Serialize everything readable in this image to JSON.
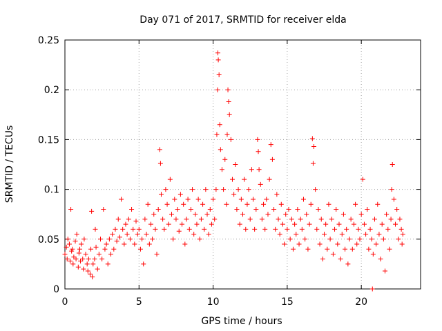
{
  "chart_data": {
    "type": "scatter",
    "title": "Day 071 of 2017, SRMTID for receiver elda",
    "xlabel": "GPS time / hours",
    "ylabel": "SRMTID / TECUs",
    "xlim": [
      0,
      24
    ],
    "ylim": [
      0,
      0.25
    ],
    "xticks": [
      0,
      5,
      10,
      15,
      20
    ],
    "xtick_labels": [
      "0",
      "5",
      "10",
      "15",
      "20"
    ],
    "yticks": [
      0,
      0.05,
      0.1,
      0.15,
      0.2,
      0.25
    ],
    "ytick_labels": [
      "0",
      "0.05",
      "0.1",
      "0.15",
      "0.2",
      "0.25"
    ],
    "grid": true,
    "marker": "+",
    "color": "#ff0000",
    "series": [
      {
        "name": "SRMTID",
        "points": [
          [
            0.0,
            0.035
          ],
          [
            0.1,
            0.042
          ],
          [
            0.15,
            0.03
          ],
          [
            0.2,
            0.05
          ],
          [
            0.3,
            0.045
          ],
          [
            0.35,
            0.028
          ],
          [
            0.4,
            0.08
          ],
          [
            0.45,
            0.038
          ],
          [
            0.5,
            0.04
          ],
          [
            0.55,
            0.025
          ],
          [
            0.6,
            0.032
          ],
          [
            0.7,
            0.048
          ],
          [
            0.75,
            0.03
          ],
          [
            0.8,
            0.055
          ],
          [
            0.9,
            0.022
          ],
          [
            0.95,
            0.036
          ],
          [
            1.0,
            0.04
          ],
          [
            1.05,
            0.028
          ],
          [
            1.1,
            0.045
          ],
          [
            1.2,
            0.03
          ],
          [
            1.25,
            0.02
          ],
          [
            1.3,
            0.05
          ],
          [
            1.4,
            0.035
          ],
          [
            1.5,
            0.025
          ],
          [
            1.55,
            0.018
          ],
          [
            1.6,
            0.03
          ],
          [
            1.7,
            0.015
          ],
          [
            1.75,
            0.04
          ],
          [
            1.8,
            0.078
          ],
          [
            1.85,
            0.012
          ],
          [
            1.9,
            0.025
          ],
          [
            2.0,
            0.03
          ],
          [
            2.05,
            0.06
          ],
          [
            2.1,
            0.042
          ],
          [
            2.2,
            0.02
          ],
          [
            2.3,
            0.035
          ],
          [
            2.4,
            0.05
          ],
          [
            2.5,
            0.03
          ],
          [
            2.6,
            0.08
          ],
          [
            2.7,
            0.04
          ],
          [
            2.8,
            0.045
          ],
          [
            2.9,
            0.025
          ],
          [
            3.0,
            0.05
          ],
          [
            3.1,
            0.035
          ],
          [
            3.2,
            0.055
          ],
          [
            3.3,
            0.04
          ],
          [
            3.4,
            0.06
          ],
          [
            3.5,
            0.048
          ],
          [
            3.6,
            0.07
          ],
          [
            3.7,
            0.052
          ],
          [
            3.8,
            0.09
          ],
          [
            3.9,
            0.06
          ],
          [
            4.0,
            0.045
          ],
          [
            4.1,
            0.065
          ],
          [
            4.2,
            0.055
          ],
          [
            4.3,
            0.07
          ],
          [
            4.4,
            0.05
          ],
          [
            4.5,
            0.08
          ],
          [
            4.6,
            0.06
          ],
          [
            4.7,
            0.045
          ],
          [
            4.8,
            0.068
          ],
          [
            4.9,
            0.055
          ],
          [
            5.0,
            0.06
          ],
          [
            5.1,
            0.04
          ],
          [
            5.2,
            0.05
          ],
          [
            5.3,
            0.025
          ],
          [
            5.4,
            0.07
          ],
          [
            5.5,
            0.055
          ],
          [
            5.6,
            0.085
          ],
          [
            5.7,
            0.045
          ],
          [
            5.8,
            0.065
          ],
          [
            5.9,
            0.05
          ],
          [
            6.0,
            0.075
          ],
          [
            6.1,
            0.06
          ],
          [
            6.2,
            0.035
          ],
          [
            6.3,
            0.08
          ],
          [
            6.4,
            0.14
          ],
          [
            6.45,
            0.126
          ],
          [
            6.5,
            0.095
          ],
          [
            6.6,
            0.07
          ],
          [
            6.7,
            0.06
          ],
          [
            6.8,
            0.1
          ],
          [
            6.9,
            0.085
          ],
          [
            7.0,
            0.065
          ],
          [
            7.1,
            0.11
          ],
          [
            7.2,
            0.075
          ],
          [
            7.3,
            0.05
          ],
          [
            7.4,
            0.09
          ],
          [
            7.5,
            0.07
          ],
          [
            7.6,
            0.08
          ],
          [
            7.7,
            0.058
          ],
          [
            7.8,
            0.095
          ],
          [
            7.9,
            0.065
          ],
          [
            8.0,
            0.085
          ],
          [
            8.1,
            0.045
          ],
          [
            8.2,
            0.07
          ],
          [
            8.3,
            0.09
          ],
          [
            8.4,
            0.06
          ],
          [
            8.5,
            0.08
          ],
          [
            8.6,
            0.1
          ],
          [
            8.7,
            0.055
          ],
          [
            8.8,
            0.075
          ],
          [
            8.9,
            0.065
          ],
          [
            9.0,
            0.09
          ],
          [
            9.1,
            0.05
          ],
          [
            9.2,
            0.07
          ],
          [
            9.3,
            0.085
          ],
          [
            9.4,
            0.06
          ],
          [
            9.5,
            0.1
          ],
          [
            9.6,
            0.075
          ],
          [
            9.7,
            0.055
          ],
          [
            9.8,
            0.08
          ],
          [
            9.9,
            0.065
          ],
          [
            10.0,
            0.09
          ],
          [
            10.1,
            0.07
          ],
          [
            10.2,
            0.1
          ],
          [
            10.25,
            0.155
          ],
          [
            10.3,
            0.2
          ],
          [
            10.32,
            0.237
          ],
          [
            10.35,
            0.23
          ],
          [
            10.4,
            0.215
          ],
          [
            10.45,
            0.165
          ],
          [
            10.5,
            0.14
          ],
          [
            10.6,
            0.12
          ],
          [
            10.7,
            0.1
          ],
          [
            10.8,
            0.13
          ],
          [
            10.9,
            0.085
          ],
          [
            10.95,
            0.155
          ],
          [
            11.0,
            0.2
          ],
          [
            11.05,
            0.188
          ],
          [
            11.1,
            0.175
          ],
          [
            11.2,
            0.15
          ],
          [
            11.3,
            0.11
          ],
          [
            11.4,
            0.095
          ],
          [
            11.5,
            0.125
          ],
          [
            11.6,
            0.08
          ],
          [
            11.7,
            0.1
          ],
          [
            11.8,
            0.065
          ],
          [
            11.9,
            0.09
          ],
          [
            12.0,
            0.075
          ],
          [
            12.1,
            0.11
          ],
          [
            12.2,
            0.06
          ],
          [
            12.3,
            0.085
          ],
          [
            12.4,
            0.1
          ],
          [
            12.5,
            0.07
          ],
          [
            12.6,
            0.12
          ],
          [
            12.7,
            0.09
          ],
          [
            12.8,
            0.06
          ],
          [
            12.9,
            0.08
          ],
          [
            13.0,
            0.15
          ],
          [
            13.05,
            0.138
          ],
          [
            13.1,
            0.12
          ],
          [
            13.2,
            0.105
          ],
          [
            13.3,
            0.07
          ],
          [
            13.4,
            0.085
          ],
          [
            13.5,
            0.06
          ],
          [
            13.6,
            0.09
          ],
          [
            13.7,
            0.075
          ],
          [
            13.8,
            0.11
          ],
          [
            13.9,
            0.145
          ],
          [
            14.0,
            0.13
          ],
          [
            14.1,
            0.08
          ],
          [
            14.2,
            0.06
          ],
          [
            14.3,
            0.095
          ],
          [
            14.4,
            0.07
          ],
          [
            14.5,
            0.055
          ],
          [
            14.6,
            0.085
          ],
          [
            14.7,
            0.065
          ],
          [
            14.8,
            0.045
          ],
          [
            14.9,
            0.075
          ],
          [
            15.0,
            0.06
          ],
          [
            15.1,
            0.08
          ],
          [
            15.2,
            0.05
          ],
          [
            15.3,
            0.07
          ],
          [
            15.4,
            0.04
          ],
          [
            15.5,
            0.065
          ],
          [
            15.6,
            0.055
          ],
          [
            15.7,
            0.08
          ],
          [
            15.8,
            0.045
          ],
          [
            15.9,
            0.07
          ],
          [
            16.0,
            0.06
          ],
          [
            16.1,
            0.09
          ],
          [
            16.2,
            0.05
          ],
          [
            16.3,
            0.075
          ],
          [
            16.4,
            0.04
          ],
          [
            16.5,
            0.065
          ],
          [
            16.6,
            0.085
          ],
          [
            16.7,
            0.151
          ],
          [
            16.75,
            0.126
          ],
          [
            16.8,
            0.143
          ],
          [
            16.9,
            0.1
          ],
          [
            17.0,
            0.06
          ],
          [
            17.1,
            0.08
          ],
          [
            17.2,
            0.045
          ],
          [
            17.3,
            0.07
          ],
          [
            17.4,
            0.03
          ],
          [
            17.5,
            0.055
          ],
          [
            17.6,
            0.065
          ],
          [
            17.7,
            0.04
          ],
          [
            17.8,
            0.085
          ],
          [
            17.9,
            0.05
          ],
          [
            18.0,
            0.07
          ],
          [
            18.1,
            0.035
          ],
          [
            18.2,
            0.06
          ],
          [
            18.3,
            0.08
          ],
          [
            18.4,
            0.045
          ],
          [
            18.5,
            0.065
          ],
          [
            18.6,
            0.03
          ],
          [
            18.7,
            0.055
          ],
          [
            18.8,
            0.075
          ],
          [
            18.9,
            0.04
          ],
          [
            19.0,
            0.06
          ],
          [
            19.1,
            0.025
          ],
          [
            19.2,
            0.05
          ],
          [
            19.3,
            0.07
          ],
          [
            19.4,
            0.04
          ],
          [
            19.5,
            0.065
          ],
          [
            19.6,
            0.085
          ],
          [
            19.7,
            0.045
          ],
          [
            19.8,
            0.06
          ],
          [
            19.9,
            0.05
          ],
          [
            20.0,
            0.075
          ],
          [
            20.1,
            0.11
          ],
          [
            20.2,
            0.065
          ],
          [
            20.3,
            0.055
          ],
          [
            20.4,
            0.08
          ],
          [
            20.5,
            0.04
          ],
          [
            20.6,
            0.06
          ],
          [
            20.7,
            0.05
          ],
          [
            20.75,
            0.0
          ],
          [
            20.8,
            0.035
          ],
          [
            20.9,
            0.07
          ],
          [
            21.0,
            0.045
          ],
          [
            21.1,
            0.085
          ],
          [
            21.2,
            0.055
          ],
          [
            21.3,
            0.03
          ],
          [
            21.4,
            0.065
          ],
          [
            21.5,
            0.05
          ],
          [
            21.6,
            0.018
          ],
          [
            21.7,
            0.075
          ],
          [
            21.8,
            0.06
          ],
          [
            21.9,
            0.04
          ],
          [
            22.0,
            0.07
          ],
          [
            22.05,
            0.1
          ],
          [
            22.1,
            0.125
          ],
          [
            22.2,
            0.09
          ],
          [
            22.3,
            0.065
          ],
          [
            22.4,
            0.08
          ],
          [
            22.5,
            0.05
          ],
          [
            22.6,
            0.07
          ],
          [
            22.7,
            0.06
          ],
          [
            22.75,
            0.045
          ],
          [
            22.8,
            0.055
          ]
        ]
      }
    ]
  }
}
